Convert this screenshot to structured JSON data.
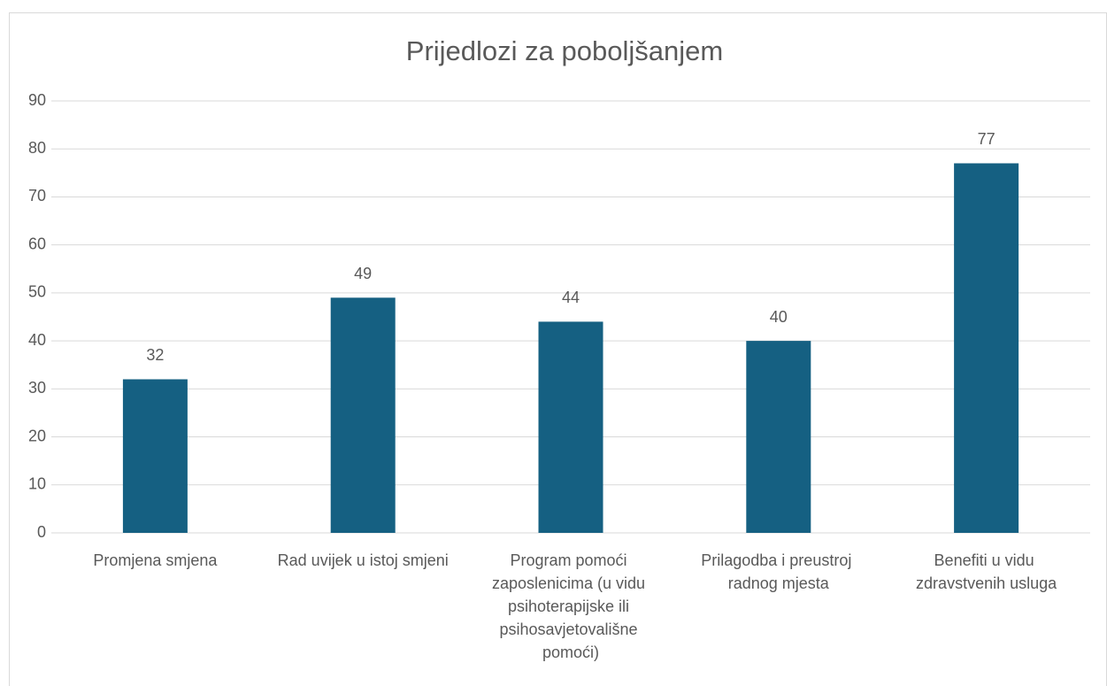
{
  "chart_data": {
    "type": "bar",
    "title": "Prijedlozi za poboljšanjem",
    "categories": [
      "Promjena smjena",
      "Rad uvijek u istoj smjeni",
      "Program pomoći zaposlenicima (u vidu psihoterapijske ili psihosavjetovališne pomoći)",
      "Prilagodba i preustroj radnog mjesta",
      "Benefiti u vidu zdravstvenih usluga"
    ],
    "values": [
      32,
      49,
      44,
      40,
      77
    ],
    "color": "#156082",
    "ylim": [
      0,
      90
    ],
    "yticks": [
      0,
      10,
      20,
      30,
      40,
      50,
      60,
      70,
      80,
      90
    ],
    "grid": true
  }
}
